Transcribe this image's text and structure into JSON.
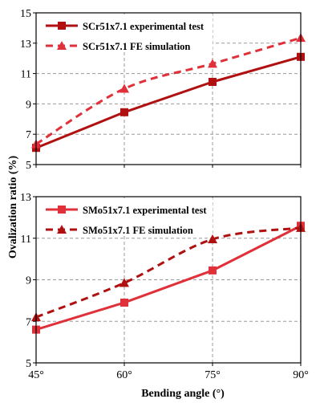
{
  "figure": {
    "ylabel": "Ovalization ratio (%)",
    "xlabel": "Bending angle (°)",
    "x_tick_labels": [
      "45°",
      "60°",
      "75°",
      "90°"
    ]
  },
  "chart_data": [
    {
      "type": "line",
      "x": [
        45,
        60,
        75,
        90
      ],
      "xlim": [
        45,
        90
      ],
      "ylim": [
        5,
        15
      ],
      "yticks": [
        5,
        7,
        9,
        11,
        13,
        15
      ],
      "grid": true,
      "legend_position": "top-left",
      "series": [
        {
          "name": "SCr51x7.1 experimental test",
          "values": [
            6.1,
            8.45,
            10.45,
            12.1
          ],
          "color": "#b01010",
          "dash": false,
          "marker": "square"
        },
        {
          "name": "SCr51x7.1 FE simulation",
          "values": [
            6.35,
            10.0,
            11.65,
            13.35
          ],
          "color": "#e0303a",
          "dash": true,
          "marker": "triangle"
        }
      ]
    },
    {
      "type": "line",
      "x": [
        45,
        60,
        75,
        90
      ],
      "xlim": [
        45,
        90
      ],
      "ylim": [
        5,
        13
      ],
      "yticks": [
        5,
        7,
        9,
        11,
        13
      ],
      "grid": true,
      "legend_position": "top-left",
      "series": [
        {
          "name": "SMo51x7.1 experimental test",
          "values": [
            6.6,
            7.9,
            9.45,
            11.6
          ],
          "color": "#e0303a",
          "dash": false,
          "marker": "square"
        },
        {
          "name": "SMo51x7.1 FE simulation",
          "values": [
            7.2,
            8.85,
            10.95,
            11.5
          ],
          "color": "#b01010",
          "dash": true,
          "marker": "triangle"
        }
      ]
    }
  ]
}
